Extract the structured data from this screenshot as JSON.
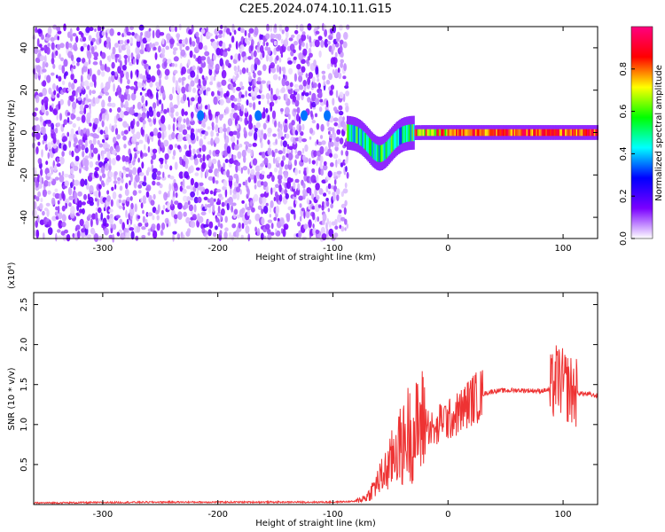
{
  "figure_title": "C2E5.2024.074.10.11.G15",
  "chart_data": [
    {
      "type": "heatmap",
      "xlabel": "Height of straight line (km)",
      "ylabel": "Frequency (Hz)",
      "xlim": [
        -360,
        130
      ],
      "ylim": [
        -50,
        50
      ],
      "xticks": [
        -300,
        -200,
        -100,
        0,
        100
      ],
      "yticks": [
        -40,
        -20,
        0,
        20,
        40
      ],
      "colorbar": {
        "label": "Normalized spectral amplitude",
        "range": [
          0.0,
          1.0
        ],
        "ticks": [
          "0.0",
          "0.2",
          "0.4",
          "0.6",
          "0.8"
        ],
        "colors": [
          "#ffffff",
          "#7a00ff",
          "#0000ff",
          "#00ffff",
          "#00ff00",
          "#ffff00",
          "#ff0000",
          "#ff0080"
        ]
      },
      "features": {
        "noise_region_x": [
          -360,
          -88
        ],
        "noise_level": 0.1,
        "signal_line_frequency_hz": 0,
        "signal_line_x": [
          -88,
          130
        ],
        "signal_line_peak_amplitude": 0.95,
        "signal_dip_x": -60,
        "signal_dip_frequency_hz": -10
      }
    },
    {
      "type": "line",
      "xlabel": "Height of straight line (km)",
      "ylabel": "SNR (10 * v/v)",
      "y_scale_label": "(x10⁴)",
      "xlim": [
        -360,
        130
      ],
      "ylim": [
        0,
        2.65
      ],
      "xticks": [
        -300,
        -200,
        -100,
        0,
        100
      ],
      "yticks": [
        "0.5",
        "1.0",
        "1.5",
        "2.0",
        "2.5"
      ],
      "series": [
        {
          "color": "#ee3333",
          "x": [
            -360,
            -250,
            -100,
            -80,
            -70,
            -60,
            -50,
            -45,
            -40,
            -35,
            -30,
            -25,
            -20,
            -15,
            -10,
            -5,
            0,
            10,
            20,
            30,
            40,
            60,
            80,
            90,
            95,
            100,
            105,
            110,
            120,
            130
          ],
          "y": [
            0.02,
            0.03,
            0.03,
            0.04,
            0.1,
            0.3,
            0.5,
            0.75,
            0.7,
            0.9,
            0.85,
            1.0,
            1.05,
            0.95,
            0.9,
            1.1,
            1.05,
            1.15,
            1.3,
            1.38,
            1.42,
            1.43,
            1.42,
            1.44,
            1.6,
            1.5,
            1.45,
            1.4,
            1.38,
            1.36
          ]
        }
      ]
    }
  ]
}
